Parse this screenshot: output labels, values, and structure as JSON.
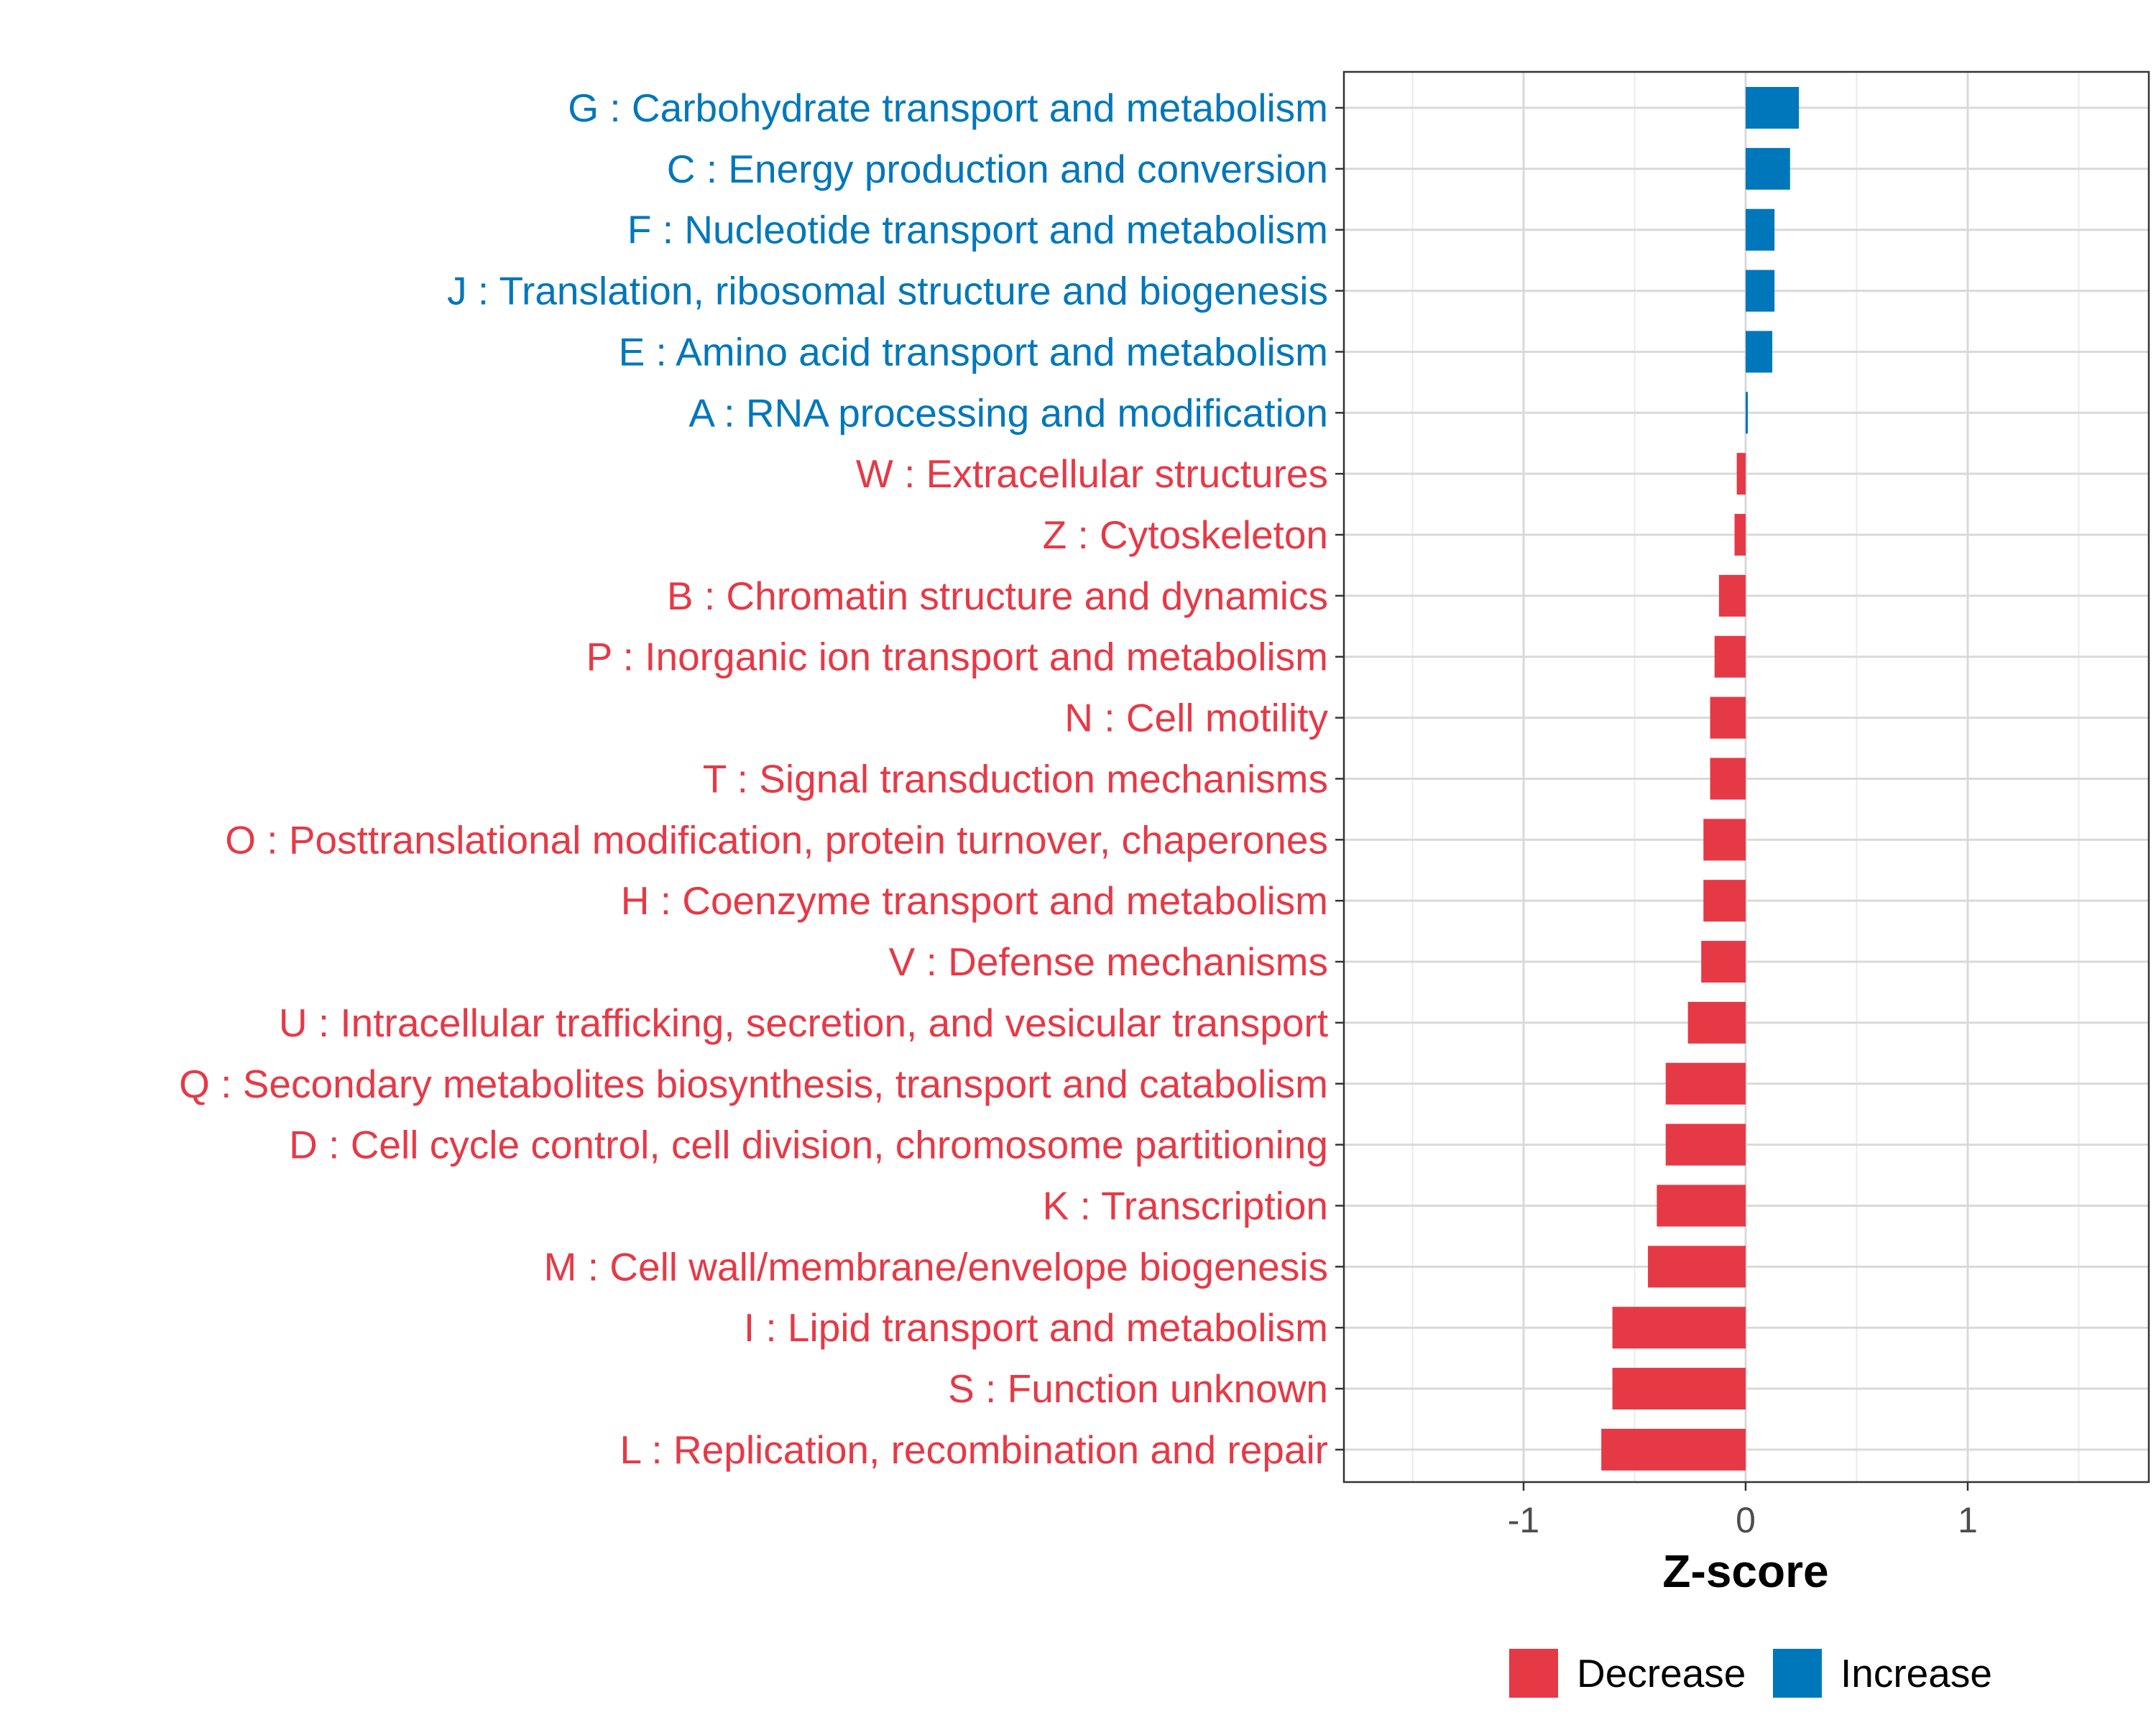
{
  "chart_data": {
    "type": "bar",
    "orientation": "horizontal",
    "title": "",
    "xlabel": "Z-score",
    "ylabel": "",
    "xlim": [
      -1.8,
      1.8
    ],
    "xticks": [
      -1,
      0,
      1
    ],
    "xtick_labels": [
      "-1",
      "0",
      "1"
    ],
    "grid": true,
    "legend_position": "bottom",
    "colors": {
      "Decrease": "#E63946",
      "Increase": "#0077BB"
    },
    "legend": [
      {
        "name": "Decrease",
        "color": "#E63946"
      },
      {
        "name": "Increase",
        "color": "#0077BB"
      }
    ],
    "categories": [
      "G : Carbohydrate transport and metabolism",
      "C : Energy production and conversion",
      "F : Nucleotide transport and metabolism",
      "J : Translation, ribosomal structure and biogenesis",
      "E : Amino acid transport and metabolism",
      "A : RNA processing and modification",
      "W : Extracellular structures",
      "Z : Cytoskeleton",
      "B : Chromatin structure and dynamics",
      "P : Inorganic ion transport and metabolism",
      "N : Cell motility",
      "T : Signal transduction mechanisms",
      "O : Posttranslational modification, protein turnover, chaperones",
      "H : Coenzyme transport and metabolism",
      "V : Defense mechanisms",
      "U : Intracellular trafficking, secretion, and vesicular transport",
      "Q : Secondary metabolites biosynthesis, transport and catabolism",
      "D : Cell cycle control, cell division, chromosome partitioning",
      "K : Transcription",
      "M : Cell wall/membrane/envelope biogenesis",
      "I : Lipid transport and metabolism",
      "S : Function unknown",
      "L : Replication, recombination and repair"
    ],
    "values": [
      0.24,
      0.2,
      0.13,
      0.13,
      0.12,
      0.01,
      -0.04,
      -0.05,
      -0.12,
      -0.14,
      -0.16,
      -0.16,
      -0.19,
      -0.19,
      -0.2,
      -0.26,
      -0.36,
      -0.36,
      -0.4,
      -0.44,
      -0.6,
      -0.6,
      -0.65
    ],
    "groups": [
      "Increase",
      "Increase",
      "Increase",
      "Increase",
      "Increase",
      "Increase",
      "Decrease",
      "Decrease",
      "Decrease",
      "Decrease",
      "Decrease",
      "Decrease",
      "Decrease",
      "Decrease",
      "Decrease",
      "Decrease",
      "Decrease",
      "Decrease",
      "Decrease",
      "Decrease",
      "Decrease",
      "Decrease",
      "Decrease"
    ]
  }
}
